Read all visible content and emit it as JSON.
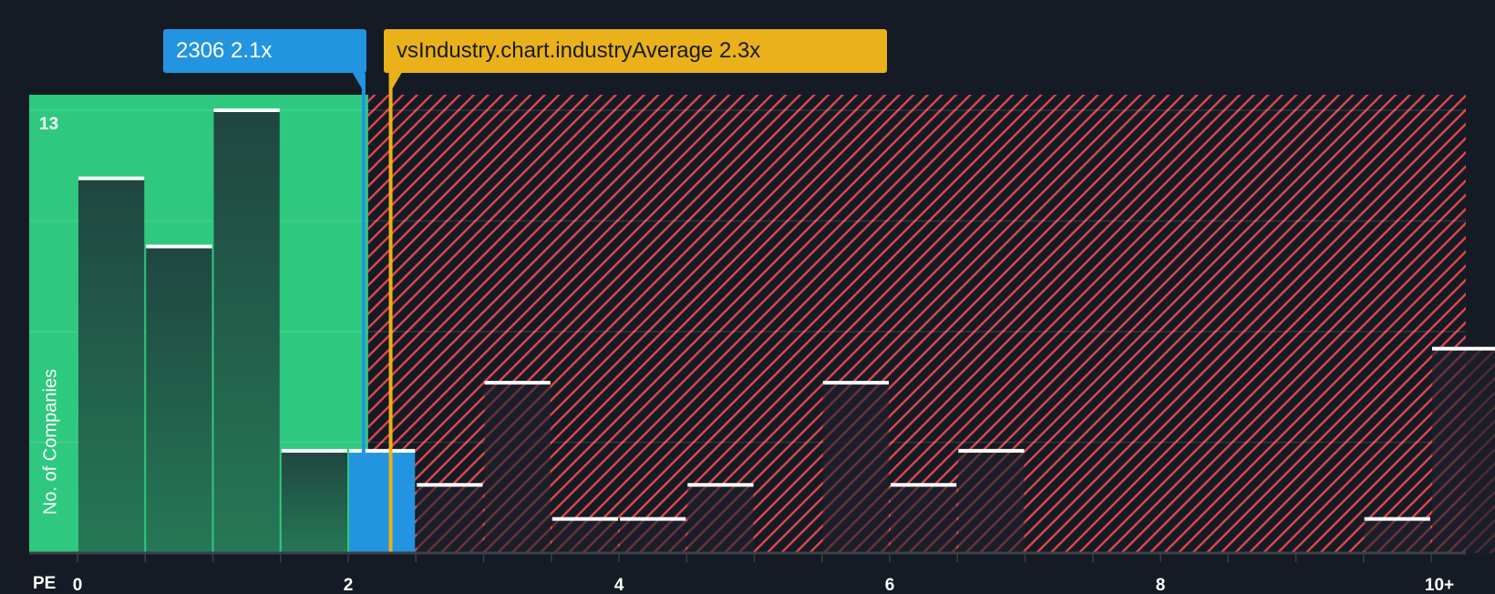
{
  "chart_data": {
    "type": "bar",
    "title": "",
    "xlabel": "PE",
    "ylabel": "No. of Companies",
    "x_tick_labels": [
      "0",
      "2",
      "4",
      "6",
      "8",
      "10+"
    ],
    "x_tick_values": [
      0,
      2,
      4,
      6,
      8,
      10
    ],
    "bin_width": 0.5,
    "xlim": [
      0,
      10.5
    ],
    "ylim": [
      0,
      13
    ],
    "y_max_label": "13",
    "grid": true,
    "bins": [
      {
        "x0": 0.0,
        "x1": 0.5,
        "value": 11
      },
      {
        "x0": 0.5,
        "x1": 1.0,
        "value": 9
      },
      {
        "x0": 1.0,
        "x1": 1.5,
        "value": 13
      },
      {
        "x0": 1.5,
        "x1": 2.0,
        "value": 3
      },
      {
        "x0": 2.0,
        "x1": 2.5,
        "value": 3,
        "highlight": true
      },
      {
        "x0": 2.5,
        "x1": 3.0,
        "value": 2
      },
      {
        "x0": 3.0,
        "x1": 3.5,
        "value": 5
      },
      {
        "x0": 3.5,
        "x1": 4.0,
        "value": 1
      },
      {
        "x0": 4.0,
        "x1": 4.5,
        "value": 1
      },
      {
        "x0": 4.5,
        "x1": 5.0,
        "value": 2
      },
      {
        "x0": 5.0,
        "x1": 5.5,
        "value": 0
      },
      {
        "x0": 5.5,
        "x1": 6.0,
        "value": 5
      },
      {
        "x0": 6.0,
        "x1": 6.5,
        "value": 2
      },
      {
        "x0": 6.5,
        "x1": 7.0,
        "value": 3
      },
      {
        "x0": 7.0,
        "x1": 7.5,
        "value": 0
      },
      {
        "x0": 7.5,
        "x1": 8.0,
        "value": 0
      },
      {
        "x0": 8.0,
        "x1": 8.5,
        "value": 0
      },
      {
        "x0": 8.5,
        "x1": 9.0,
        "value": 0
      },
      {
        "x0": 9.0,
        "x1": 9.5,
        "value": 0
      },
      {
        "x0": 9.5,
        "x1": 10.0,
        "value": 1
      },
      {
        "x0": 10.0,
        "x1": 10.5,
        "value": 6
      }
    ],
    "markers": {
      "company": {
        "label": "2306 2.1x",
        "value": 2.1,
        "color": "#2394e0"
      },
      "industry": {
        "label": "vsIndustry.chart.industryAverage 2.3x",
        "value": 2.3,
        "color": "#ebb11a"
      }
    },
    "regions": {
      "undervalued_color": "#2ec97f",
      "overvalued_stripe_color": "#e0474c"
    }
  },
  "labels": {
    "company_callout": "2306 2.1x",
    "industry_callout": "vsIndustry.chart.industryAverage 2.3x",
    "y_axis_title": "No. of Companies",
    "y_max": "13",
    "x_axis_title": "PE"
  }
}
